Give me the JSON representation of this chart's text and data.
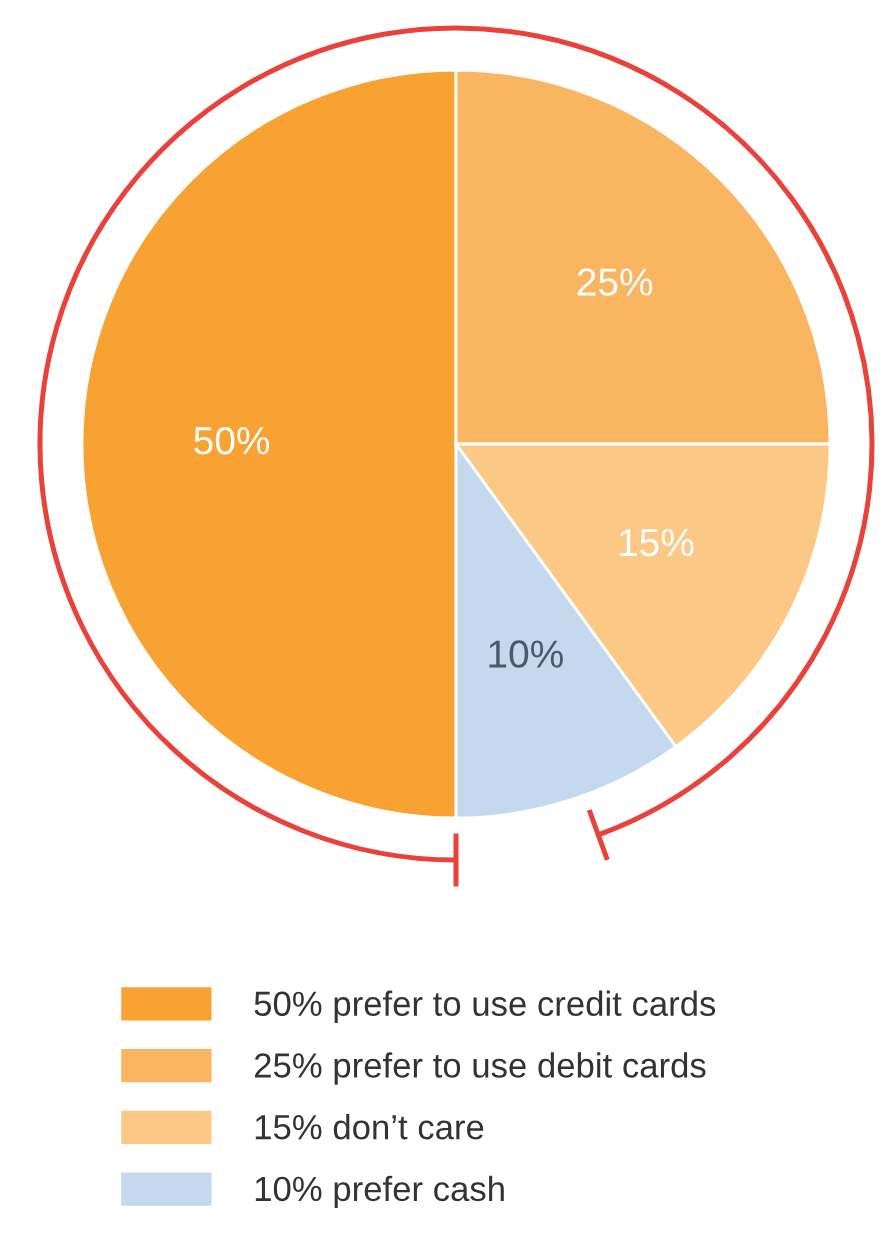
{
  "chart_data": {
    "type": "pie",
    "categories": [
      "50% prefer to use credit cards",
      "25% prefer to use debit cards",
      "15% don’t care",
      "10% prefer cash"
    ],
    "values": [
      50,
      25,
      15,
      10
    ],
    "colors": [
      "#f7a233",
      "#f9b55f",
      "#fbc886",
      "#c5d9ee"
    ],
    "value_labels": [
      "50%",
      "25%",
      "15%",
      "10%"
    ],
    "legend": "bottom"
  }
}
